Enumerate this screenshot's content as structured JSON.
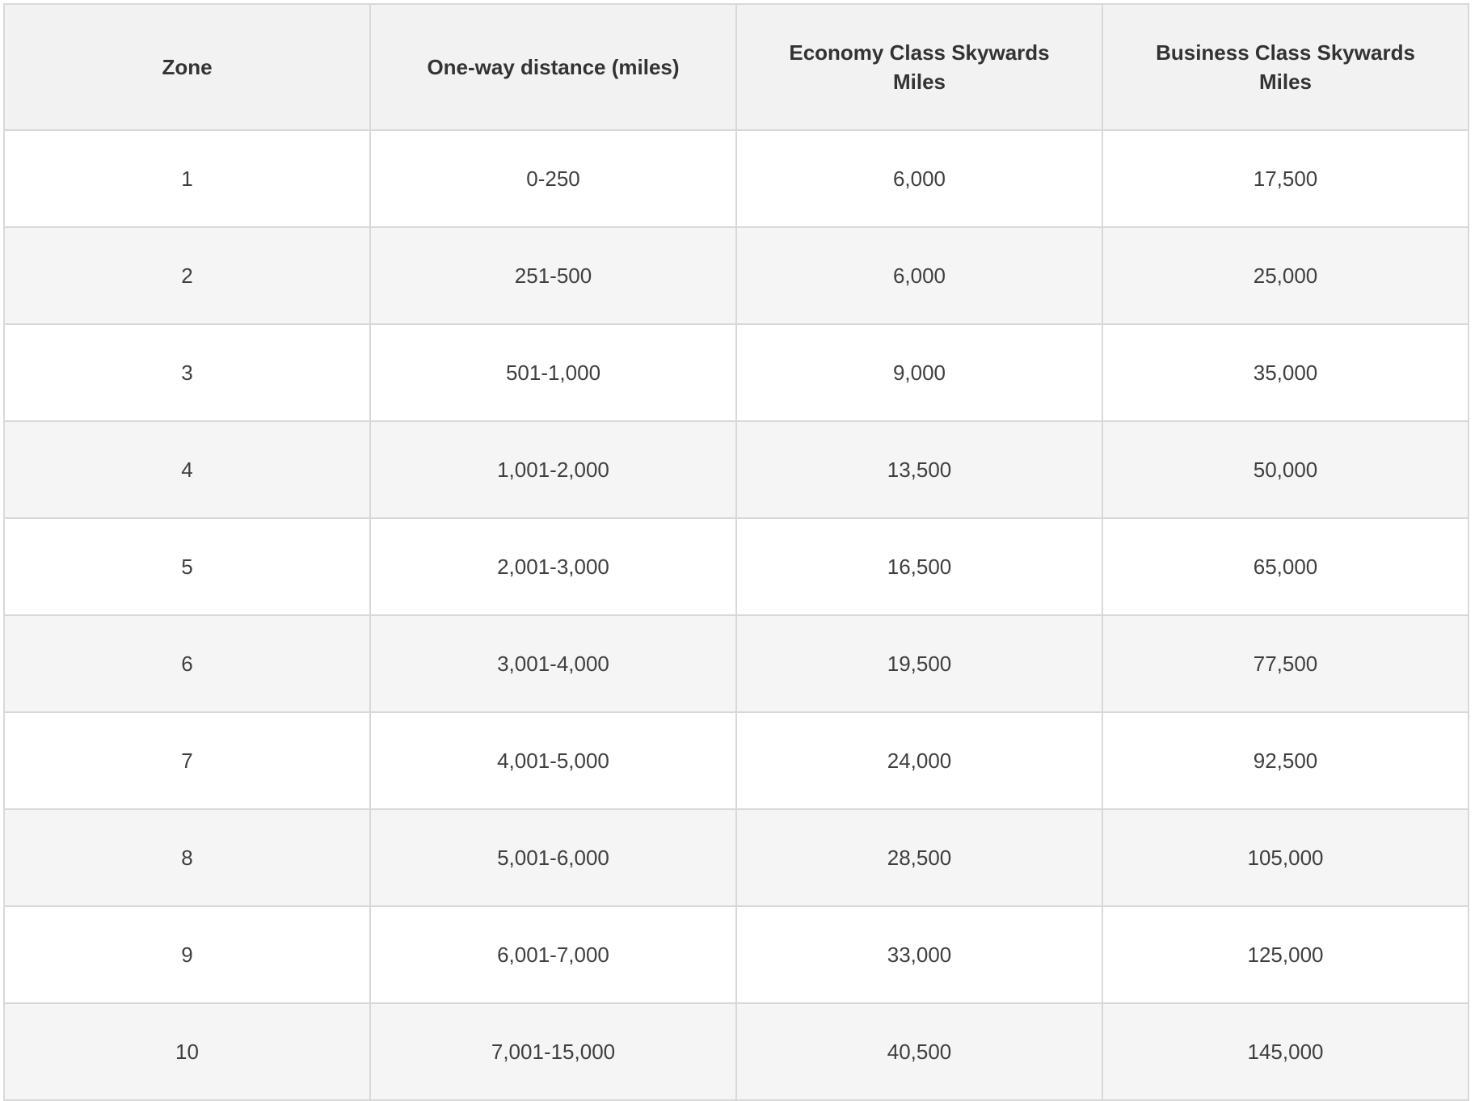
{
  "colors": {
    "page_background": "#ffffff",
    "header_background": "#f2f2f2",
    "stripe_background": "#f5f5f5",
    "border": "#d8d8d8",
    "header_text": "#333333",
    "cell_text": "#3f3f3f"
  },
  "table": {
    "columns": [
      "Zone",
      "One-way distance (miles)",
      "Economy Class Skywards Miles",
      "Business Class Skywards Miles"
    ],
    "rows": [
      [
        "1",
        "0-250",
        "6,000",
        "17,500"
      ],
      [
        "2",
        "251-500",
        "6,000",
        "25,000"
      ],
      [
        "3",
        "501-1,000",
        "9,000",
        "35,000"
      ],
      [
        "4",
        "1,001-2,000",
        "13,500",
        "50,000"
      ],
      [
        "5",
        "2,001-3,000",
        "16,500",
        "65,000"
      ],
      [
        "6",
        "3,001-4,000",
        "19,500",
        "77,500"
      ],
      [
        "7",
        "4,001-5,000",
        "24,000",
        "92,500"
      ],
      [
        "8",
        "5,001-6,000",
        "28,500",
        "105,000"
      ],
      [
        "9",
        "6,001-7,000",
        "33,000",
        "125,000"
      ],
      [
        "10",
        "7,001-15,000",
        "40,500",
        "145,000"
      ]
    ]
  }
}
